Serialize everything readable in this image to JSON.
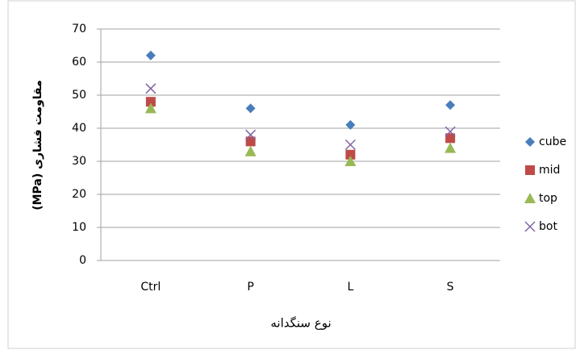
{
  "chart_data": {
    "type": "scatter",
    "y_label": "(MPa) مقاومت فشاری",
    "x_label": "نوع سنگدانه",
    "categories": [
      "Ctrl",
      "P",
      "L",
      "S"
    ],
    "series": [
      {
        "name": "cube",
        "color": "#4a7ebb",
        "marker": "diamond",
        "values": [
          62,
          46,
          41,
          47
        ]
      },
      {
        "name": "mid",
        "color": "#be4b48",
        "marker": "square",
        "values": [
          48,
          36,
          32,
          37
        ]
      },
      {
        "name": "top",
        "color": "#98b954",
        "marker": "triangle",
        "values": [
          46,
          33,
          30,
          34
        ]
      },
      {
        "name": "bot",
        "color": "#8064a2",
        "marker": "x",
        "values": [
          52,
          38,
          35,
          39
        ]
      }
    ],
    "ylim": [
      0,
      70
    ],
    "yticks": [
      0,
      10,
      20,
      30,
      40,
      50,
      60,
      70
    ],
    "grid": true,
    "legend": "right"
  }
}
